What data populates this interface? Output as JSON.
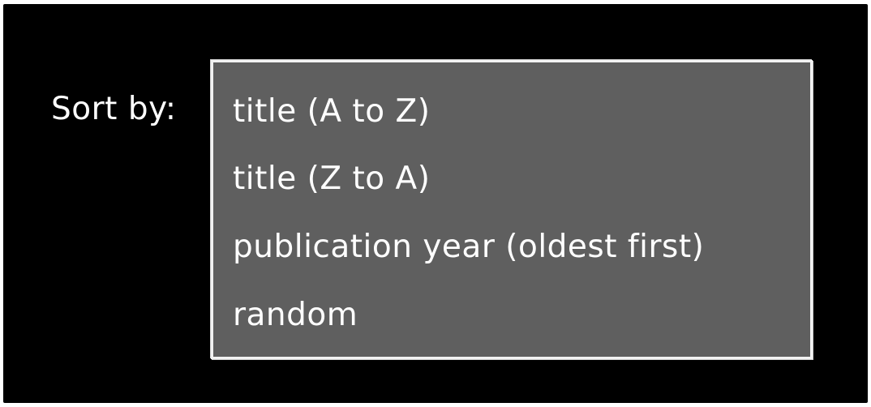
{
  "sort": {
    "label": "Sort by:",
    "options": [
      {
        "label": "title (A to Z)"
      },
      {
        "label": "title (Z to A)"
      },
      {
        "label": "publication year (oldest first)"
      },
      {
        "label": "random"
      }
    ]
  },
  "colors": {
    "background": "#000000",
    "dropdown_background": "#5f5f5f",
    "dropdown_border": "#f2f2f2",
    "text": "#ffffff"
  }
}
